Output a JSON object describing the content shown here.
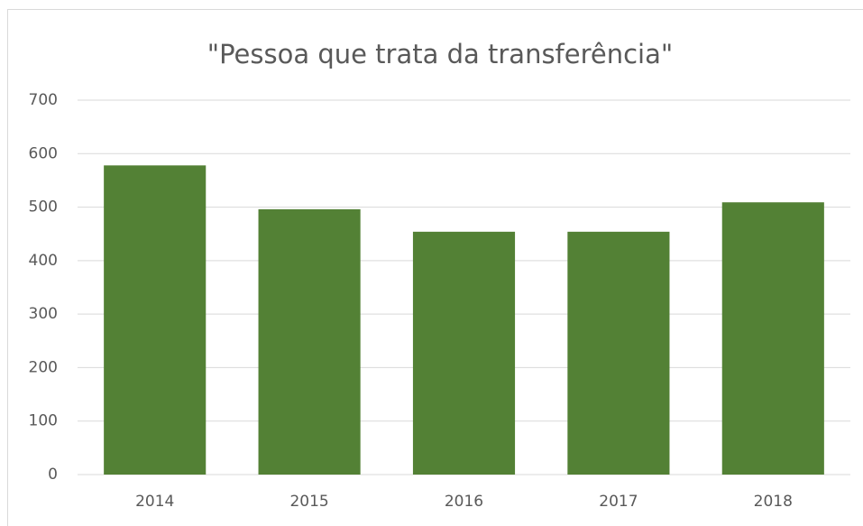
{
  "chart_data": {
    "type": "bar",
    "title": "\"Pessoa que trata da transferência\"",
    "categories": [
      "2014",
      "2015",
      "2016",
      "2017",
      "2018"
    ],
    "values": [
      578,
      496,
      454,
      454,
      509
    ],
    "color": "#538135",
    "ylim": [
      0,
      700
    ],
    "yticks": [
      0,
      100,
      200,
      300,
      400,
      500,
      600,
      700
    ],
    "grid": true
  }
}
